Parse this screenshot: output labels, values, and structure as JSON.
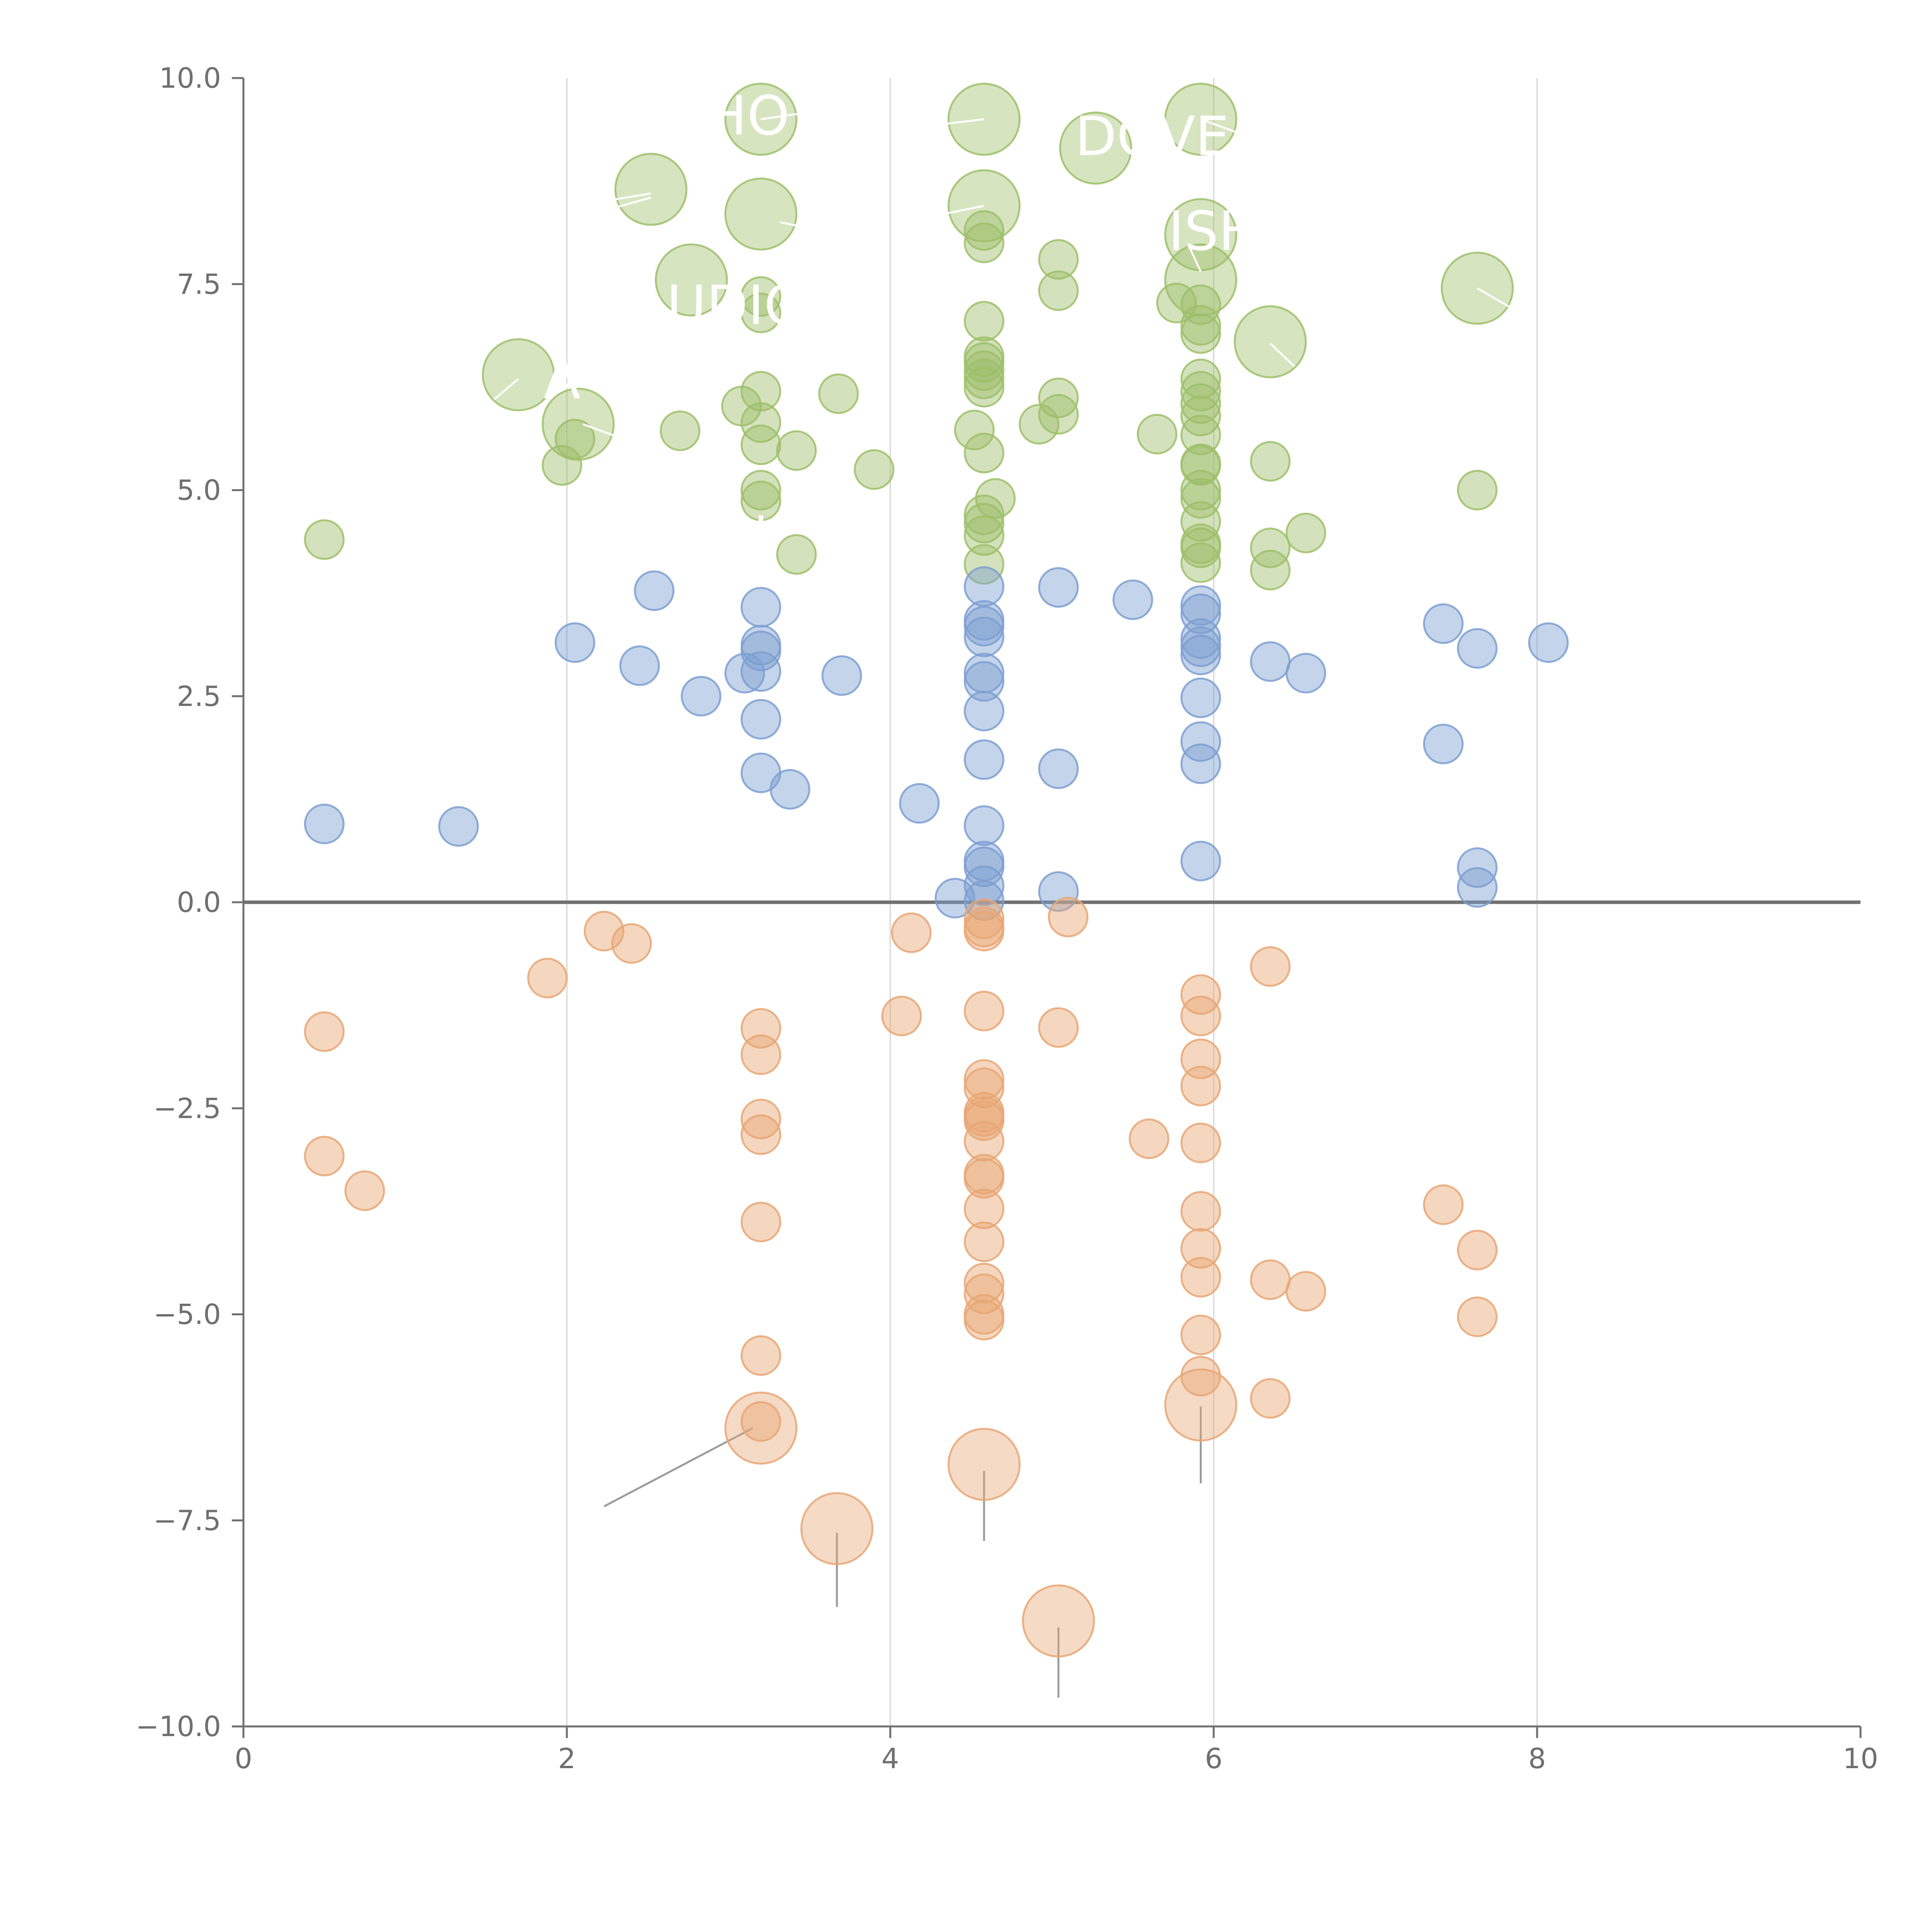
{
  "chart_data": {
    "type": "scatter",
    "title": "",
    "xlabel": "",
    "ylabel": "",
    "xlim": [
      0,
      10
    ],
    "ylim": [
      -10,
      10
    ],
    "xticks": [
      0,
      2,
      4,
      6,
      8,
      10
    ],
    "yticks": [
      -10,
      -7.5,
      -5,
      -2.5,
      0,
      2.5,
      5,
      7.5,
      10
    ],
    "tick_labels_x": [
      "0",
      "2",
      "4",
      "6",
      "8",
      "10"
    ],
    "tick_labels_y": [
      "−10.0",
      "−7.5",
      "−5.0",
      "−2.5",
      "0.0",
      "2.5",
      "5.0",
      "7.5",
      "10.0"
    ],
    "grid": "vertical",
    "zero_line": true,
    "colors": {
      "green": "#9dbf6a",
      "blue": "#7d9fd1",
      "orange": "#e8a674",
      "axis": "#6f6f6f",
      "grid": "#dddddd",
      "zero": "#707070",
      "leader": "#9a9a9a"
    },
    "series": [
      {
        "color": "green",
        "points": [
          [
            0.5,
            4.4
          ],
          [
            1.97,
            5.3
          ],
          [
            2.05,
            5.62
          ],
          [
            2.7,
            5.72
          ],
          [
            3.08,
            6.02
          ],
          [
            3.2,
            6.2
          ],
          [
            3.2,
            5.82
          ],
          [
            3.2,
            5.55
          ],
          [
            3.2,
            5.0
          ],
          [
            3.2,
            4.87
          ],
          [
            3.2,
            7.35
          ],
          [
            3.2,
            7.15
          ],
          [
            3.42,
            5.48
          ],
          [
            3.42,
            4.22
          ],
          [
            3.68,
            6.17
          ],
          [
            3.9,
            5.25
          ],
          [
            4.58,
            8.15
          ],
          [
            4.58,
            8.0
          ],
          [
            4.58,
            7.05
          ],
          [
            4.58,
            6.62
          ],
          [
            4.58,
            6.55
          ],
          [
            4.58,
            6.45
          ],
          [
            4.58,
            6.35
          ],
          [
            4.58,
            6.25
          ],
          [
            4.58,
            5.45
          ],
          [
            4.52,
            5.73
          ],
          [
            4.58,
            4.7
          ],
          [
            4.58,
            4.6
          ],
          [
            4.58,
            4.45
          ],
          [
            4.58,
            4.1
          ],
          [
            4.65,
            4.9
          ],
          [
            4.92,
            5.8
          ],
          [
            5.04,
            7.8
          ],
          [
            5.04,
            7.42
          ],
          [
            5.04,
            6.12
          ],
          [
            5.04,
            5.92
          ],
          [
            5.65,
            5.68
          ],
          [
            5.77,
            7.27
          ],
          [
            5.92,
            7.25
          ],
          [
            5.92,
            7.0
          ],
          [
            5.92,
            6.9
          ],
          [
            5.92,
            6.35
          ],
          [
            5.92,
            6.2
          ],
          [
            5.92,
            6.05
          ],
          [
            5.92,
            5.9
          ],
          [
            5.92,
            5.67
          ],
          [
            5.92,
            5.32
          ],
          [
            5.92,
            5.3
          ],
          [
            5.92,
            5.0
          ],
          [
            5.92,
            4.9
          ],
          [
            5.92,
            4.62
          ],
          [
            5.92,
            4.35
          ],
          [
            5.92,
            4.3
          ],
          [
            5.92,
            4.12
          ],
          [
            6.35,
            5.35
          ],
          [
            6.35,
            4.3
          ],
          [
            6.35,
            4.03
          ],
          [
            6.57,
            4.48
          ],
          [
            7.63,
            5.0
          ]
        ]
      },
      {
        "color": "blue",
        "points": [
          [
            0.5,
            0.95
          ],
          [
            1.33,
            0.92
          ],
          [
            2.05,
            3.15
          ],
          [
            2.45,
            2.87
          ],
          [
            2.54,
            3.78
          ],
          [
            2.83,
            2.5
          ],
          [
            3.1,
            2.78
          ],
          [
            3.2,
            3.58
          ],
          [
            3.2,
            3.12
          ],
          [
            3.2,
            3.05
          ],
          [
            3.2,
            2.8
          ],
          [
            3.2,
            2.22
          ],
          [
            3.2,
            1.57
          ],
          [
            3.38,
            1.37
          ],
          [
            3.7,
            2.75
          ],
          [
            4.18,
            1.2
          ],
          [
            4.4,
            0.05
          ],
          [
            4.58,
            3.83
          ],
          [
            4.58,
            3.42
          ],
          [
            4.58,
            3.35
          ],
          [
            4.58,
            3.22
          ],
          [
            4.58,
            2.78
          ],
          [
            4.58,
            2.68
          ],
          [
            4.58,
            2.32
          ],
          [
            4.58,
            1.73
          ],
          [
            4.58,
            0.93
          ],
          [
            4.58,
            0.5
          ],
          [
            4.58,
            0.43
          ],
          [
            4.58,
            0.2
          ],
          [
            4.58,
            0.02
          ],
          [
            5.04,
            3.82
          ],
          [
            5.04,
            1.62
          ],
          [
            5.04,
            0.13
          ],
          [
            5.5,
            3.67
          ],
          [
            5.92,
            3.6
          ],
          [
            5.92,
            3.5
          ],
          [
            5.92,
            3.2
          ],
          [
            5.92,
            3.1
          ],
          [
            5.92,
            3.0
          ],
          [
            5.92,
            2.48
          ],
          [
            5.92,
            1.95
          ],
          [
            5.92,
            1.68
          ],
          [
            5.92,
            0.5
          ],
          [
            6.35,
            2.92
          ],
          [
            6.57,
            2.78
          ],
          [
            7.42,
            3.38
          ],
          [
            7.42,
            1.92
          ],
          [
            7.63,
            3.08
          ],
          [
            7.63,
            0.42
          ],
          [
            7.63,
            0.18
          ],
          [
            8.07,
            3.15
          ]
        ]
      },
      {
        "color": "orange",
        "points": [
          [
            0.5,
            -1.57
          ],
          [
            0.5,
            -3.08
          ],
          [
            0.75,
            -3.5
          ],
          [
            1.88,
            -0.92
          ],
          [
            2.23,
            -0.35
          ],
          [
            2.4,
            -0.5
          ],
          [
            3.2,
            -1.53
          ],
          [
            3.2,
            -1.85
          ],
          [
            3.2,
            -2.63
          ],
          [
            3.2,
            -2.82
          ],
          [
            3.2,
            -3.88
          ],
          [
            3.2,
            -5.5
          ],
          [
            3.2,
            -6.3
          ],
          [
            4.07,
            -1.38
          ],
          [
            4.13,
            -0.37
          ],
          [
            4.58,
            -0.2
          ],
          [
            4.58,
            -0.3
          ],
          [
            4.58,
            -0.35
          ],
          [
            4.58,
            -1.32
          ],
          [
            4.58,
            -2.15
          ],
          [
            4.58,
            -2.25
          ],
          [
            4.58,
            -2.55
          ],
          [
            4.58,
            -2.6
          ],
          [
            4.58,
            -2.65
          ],
          [
            4.58,
            -2.9
          ],
          [
            4.58,
            -3.3
          ],
          [
            4.58,
            -3.35
          ],
          [
            4.58,
            -3.72
          ],
          [
            4.58,
            -4.12
          ],
          [
            4.58,
            -4.62
          ],
          [
            4.58,
            -4.75
          ],
          [
            4.58,
            -5.0
          ],
          [
            4.58,
            -5.07
          ],
          [
            5.04,
            -1.52
          ],
          [
            5.1,
            -0.18
          ],
          [
            5.6,
            -2.87
          ],
          [
            5.92,
            -1.12
          ],
          [
            5.92,
            -1.38
          ],
          [
            5.92,
            -1.9
          ],
          [
            5.92,
            -2.23
          ],
          [
            5.92,
            -2.92
          ],
          [
            5.92,
            -3.75
          ],
          [
            5.92,
            -4.2
          ],
          [
            5.92,
            -4.55
          ],
          [
            5.92,
            -5.25
          ],
          [
            5.92,
            -5.75
          ],
          [
            6.35,
            -0.78
          ],
          [
            6.35,
            -4.58
          ],
          [
            6.35,
            -6.02
          ],
          [
            6.57,
            -4.72
          ],
          [
            7.42,
            -3.67
          ],
          [
            7.63,
            -4.22
          ],
          [
            7.63,
            -5.03
          ]
        ]
      }
    ],
    "highlighted": [
      {
        "color": "green",
        "x": 1.7,
        "y": 6.4
      },
      {
        "color": "green",
        "x": 2.07,
        "y": 5.8
      },
      {
        "color": "green",
        "x": 2.52,
        "y": 8.65
      },
      {
        "color": "green",
        "x": 2.77,
        "y": 7.55
      },
      {
        "color": "green",
        "x": 3.2,
        "y": 9.5
      },
      {
        "color": "green",
        "x": 3.2,
        "y": 8.35
      },
      {
        "color": "green",
        "x": 4.58,
        "y": 9.5
      },
      {
        "color": "green",
        "x": 4.58,
        "y": 8.45
      },
      {
        "color": "green",
        "x": 5.27,
        "y": 9.15
      },
      {
        "color": "green",
        "x": 5.92,
        "y": 9.5
      },
      {
        "color": "green",
        "x": 5.92,
        "y": 8.1
      },
      {
        "color": "green",
        "x": 5.92,
        "y": 7.55
      },
      {
        "color": "green",
        "x": 6.35,
        "y": 6.8
      },
      {
        "color": "green",
        "x": 7.63,
        "y": 7.45
      },
      {
        "color": "orange",
        "x": 3.2,
        "y": -6.38
      },
      {
        "color": "orange",
        "x": 3.67,
        "y": -7.6
      },
      {
        "color": "orange",
        "x": 4.58,
        "y": -6.82
      },
      {
        "color": "orange",
        "x": 5.04,
        "y": -8.72
      },
      {
        "color": "orange",
        "x": 5.92,
        "y": -6.1
      }
    ],
    "annotations": [
      {
        "text": "HO",
        "x": 3.12,
        "y": 9.55
      },
      {
        "text": "DOVE",
        "x": 5.62,
        "y": 9.3
      },
      {
        "text": "ISH",
        "x": 6.0,
        "y": 8.15
      },
      {
        "text": "UDIO",
        "x": 3.05,
        "y": 7.25
      },
      {
        "text": "A",
        "x": 1.97,
        "y": 6.35
      },
      {
        "text": "'",
        "x": 3.2,
        "y": 4.45
      }
    ],
    "leader_lines": [
      [
        2.23,
        -7.33,
        3.15,
        -6.38
      ],
      [
        3.67,
        -7.65,
        3.67,
        -8.55
      ],
      [
        4.58,
        -6.9,
        4.58,
        -7.75
      ],
      [
        5.04,
        -8.8,
        5.04,
        -9.65
      ],
      [
        5.92,
        -6.12,
        5.92,
        -7.05
      ]
    ],
    "white_leader_lines": [
      [
        1.55,
        6.1,
        1.7,
        6.35
      ],
      [
        2.1,
        5.8,
        2.35,
        5.62
      ],
      [
        2.52,
        8.55,
        2.3,
        8.43
      ],
      [
        2.52,
        8.6,
        2.15,
        8.48
      ],
      [
        3.32,
        8.25,
        3.65,
        8.12
      ],
      [
        3.2,
        9.5,
        3.55,
        9.6
      ],
      [
        4.58,
        8.45,
        4.2,
        8.3
      ],
      [
        4.58,
        9.5,
        4.15,
        9.4
      ],
      [
        5.92,
        9.5,
        6.2,
        9.3
      ],
      [
        5.92,
        7.65,
        5.85,
        7.95
      ],
      [
        6.35,
        6.78,
        6.5,
        6.5
      ],
      [
        7.63,
        7.45,
        7.85,
        7.2
      ],
      [
        7.3,
        7.6,
        7.45,
        7.8
      ]
    ]
  }
}
